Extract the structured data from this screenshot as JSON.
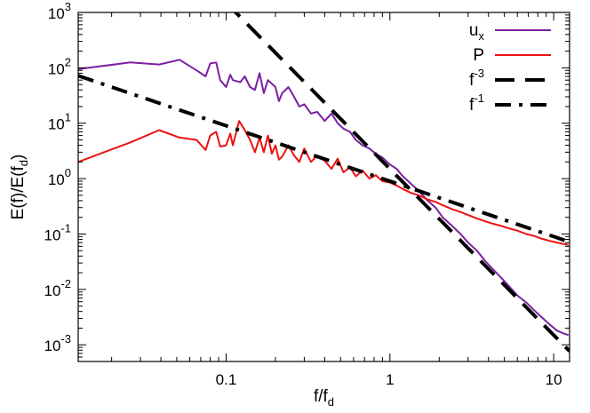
{
  "chart_data": {
    "type": "line",
    "title": "",
    "xscale": "log",
    "yscale": "log",
    "xlim": [
      0.0125,
      12.5
    ],
    "ylim": [
      0.0005,
      1000
    ],
    "xlabel": {
      "base": "f/f",
      "sub": "d"
    },
    "ylabel": {
      "pre": "E(f)/E(f",
      "sub": "d",
      "post": ")"
    },
    "x_ticks": [
      {
        "value": 0.1,
        "label": "0.1"
      },
      {
        "value": 1,
        "label": "1"
      },
      {
        "value": 10,
        "label": "10"
      }
    ],
    "y_ticks": [
      {
        "value": 0.001,
        "base": "10",
        "exp": "-3"
      },
      {
        "value": 0.01,
        "base": "10",
        "exp": "-2"
      },
      {
        "value": 0.1,
        "base": "10",
        "exp": "-1"
      },
      {
        "value": 1,
        "base": "10",
        "exp": "0"
      },
      {
        "value": 10,
        "base": "10",
        "exp": "1"
      },
      {
        "value": 100,
        "base": "10",
        "exp": "2"
      },
      {
        "value": 1000,
        "base": "10",
        "exp": "3"
      }
    ],
    "legend_position": "top-right",
    "series": [
      {
        "name": "u_x",
        "label_base": "u",
        "label_sub": "x",
        "color": "#7b1fa2",
        "dash": "solid",
        "points": [
          [
            0.0125,
            95
          ],
          [
            0.026,
            125
          ],
          [
            0.039,
            115
          ],
          [
            0.052,
            140
          ],
          [
            0.066,
            90
          ],
          [
            0.075,
            70
          ],
          [
            0.08,
            120
          ],
          [
            0.087,
            125
          ],
          [
            0.092,
            60
          ],
          [
            0.1,
            45
          ],
          [
            0.106,
            75
          ],
          [
            0.11,
            60
          ],
          [
            0.122,
            55
          ],
          [
            0.13,
            70
          ],
          [
            0.14,
            45
          ],
          [
            0.15,
            40
          ],
          [
            0.16,
            80
          ],
          [
            0.17,
            35
          ],
          [
            0.18,
            60
          ],
          [
            0.2,
            45
          ],
          [
            0.21,
            25
          ],
          [
            0.22,
            35
          ],
          [
            0.24,
            45
          ],
          [
            0.26,
            30
          ],
          [
            0.28,
            20
          ],
          [
            0.3,
            22
          ],
          [
            0.33,
            15
          ],
          [
            0.36,
            16
          ],
          [
            0.4,
            11
          ],
          [
            0.44,
            15
          ],
          [
            0.48,
            10
          ],
          [
            0.52,
            8
          ],
          [
            0.57,
            7
          ],
          [
            0.62,
            5
          ],
          [
            0.68,
            4
          ],
          [
            0.75,
            3.5
          ],
          [
            0.82,
            2.8
          ],
          [
            0.9,
            2.4
          ],
          [
            1.0,
            1.8
          ],
          [
            1.1,
            1.5
          ],
          [
            1.2,
            1.1
          ],
          [
            1.35,
            0.8
          ],
          [
            1.5,
            0.6
          ],
          [
            1.7,
            0.4
          ],
          [
            1.9,
            0.3
          ],
          [
            2.1,
            0.2
          ],
          [
            2.4,
            0.14
          ],
          [
            2.7,
            0.1
          ],
          [
            3.0,
            0.07
          ],
          [
            3.4,
            0.05
          ],
          [
            3.8,
            0.033
          ],
          [
            4.2,
            0.024
          ],
          [
            4.8,
            0.016
          ],
          [
            5.4,
            0.011
          ],
          [
            6.0,
            0.0078
          ],
          [
            6.8,
            0.0058
          ],
          [
            7.6,
            0.0042
          ],
          [
            8.5,
            0.0031
          ],
          [
            9.5,
            0.0023
          ],
          [
            10.5,
            0.0018
          ],
          [
            11.5,
            0.0016
          ],
          [
            12.3,
            0.0015
          ]
        ]
      },
      {
        "name": "P",
        "label_base": "P",
        "label_sub": "",
        "color": "#ee1111",
        "dash": "solid",
        "points": [
          [
            0.0125,
            2
          ],
          [
            0.026,
            4.5
          ],
          [
            0.039,
            7.5
          ],
          [
            0.052,
            5.5
          ],
          [
            0.066,
            5
          ],
          [
            0.075,
            3.3
          ],
          [
            0.08,
            6
          ],
          [
            0.087,
            7
          ],
          [
            0.092,
            3.8
          ],
          [
            0.1,
            4
          ],
          [
            0.106,
            6.5
          ],
          [
            0.11,
            4
          ],
          [
            0.12,
            11
          ],
          [
            0.13,
            7.5
          ],
          [
            0.14,
            5
          ],
          [
            0.15,
            3
          ],
          [
            0.16,
            5.5
          ],
          [
            0.17,
            3
          ],
          [
            0.18,
            6
          ],
          [
            0.19,
            2.8
          ],
          [
            0.2,
            4
          ],
          [
            0.21,
            2.2
          ],
          [
            0.22,
            2.5
          ],
          [
            0.24,
            4
          ],
          [
            0.26,
            2.6
          ],
          [
            0.28,
            2
          ],
          [
            0.3,
            3.5
          ],
          [
            0.33,
            2
          ],
          [
            0.36,
            2.6
          ],
          [
            0.4,
            2.1
          ],
          [
            0.44,
            1.5
          ],
          [
            0.48,
            2.3
          ],
          [
            0.52,
            1.3
          ],
          [
            0.57,
            1.6
          ],
          [
            0.62,
            1.1
          ],
          [
            0.68,
            1.4
          ],
          [
            0.75,
            1.0
          ],
          [
            0.82,
            1.15
          ],
          [
            0.9,
            0.9
          ],
          [
            1.0,
            0.85
          ],
          [
            1.1,
            0.75
          ],
          [
            1.2,
            0.65
          ],
          [
            1.35,
            0.55
          ],
          [
            1.5,
            0.5
          ],
          [
            1.7,
            0.42
          ],
          [
            1.9,
            0.38
          ],
          [
            2.1,
            0.33
          ],
          [
            2.4,
            0.28
          ],
          [
            2.7,
            0.25
          ],
          [
            3.0,
            0.22
          ],
          [
            3.4,
            0.19
          ],
          [
            3.8,
            0.17
          ],
          [
            4.2,
            0.155
          ],
          [
            4.8,
            0.14
          ],
          [
            5.4,
            0.125
          ],
          [
            6.0,
            0.115
          ],
          [
            6.8,
            0.1
          ],
          [
            7.6,
            0.092
          ],
          [
            8.5,
            0.082
          ],
          [
            9.5,
            0.075
          ],
          [
            10.5,
            0.07
          ],
          [
            11.5,
            0.066
          ],
          [
            12.3,
            0.064
          ]
        ]
      },
      {
        "name": "f^-3",
        "label_base": "f",
        "label_sup": "-3",
        "color": "#000000",
        "dash": "long",
        "fn": {
          "coef": 1.5,
          "exp": -3
        },
        "range": [
          0.1,
          12.5
        ]
      },
      {
        "name": "f^-1",
        "label_base": "f",
        "label_sup": "-1",
        "color": "#000000",
        "dash": "dashdot",
        "fn": {
          "coef": 0.9,
          "exp": -1
        },
        "range": [
          0.0125,
          12.5
        ]
      }
    ]
  }
}
